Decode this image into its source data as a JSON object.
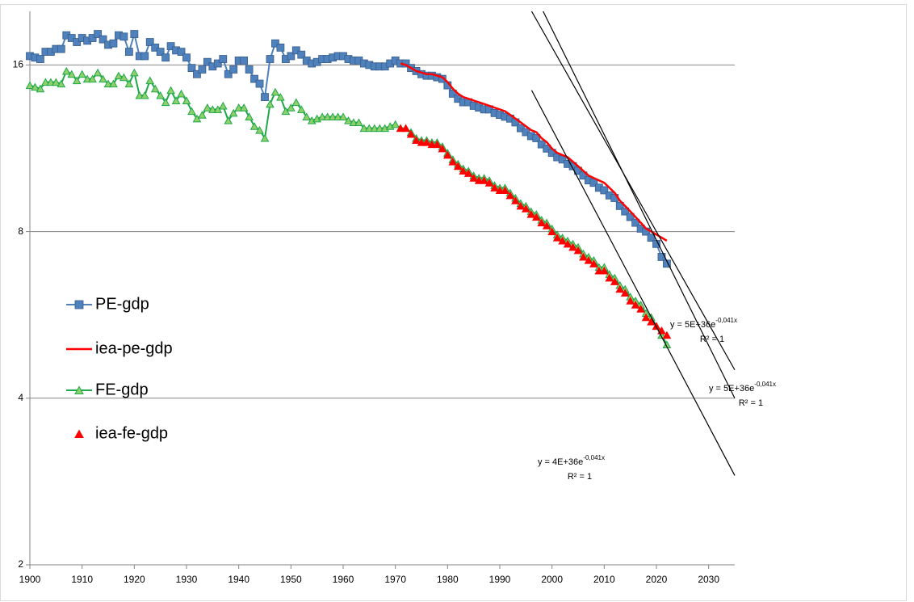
{
  "chart_data": {
    "type": "line",
    "xlim": [
      1900,
      2035
    ],
    "xticks": [
      1900,
      1910,
      1920,
      1930,
      1940,
      1950,
      1960,
      1970,
      1980,
      1990,
      2000,
      2010,
      2020,
      2030
    ],
    "ylim": [
      2,
      20
    ],
    "yticks": [
      2,
      4,
      8,
      16
    ],
    "ylog": true,
    "grid": true,
    "legend": "left",
    "x": [
      1900,
      1901,
      1902,
      1903,
      1904,
      1905,
      1906,
      1907,
      1908,
      1909,
      1910,
      1911,
      1912,
      1913,
      1914,
      1915,
      1916,
      1917,
      1918,
      1919,
      1920,
      1921,
      1922,
      1923,
      1924,
      1925,
      1926,
      1927,
      1928,
      1929,
      1930,
      1931,
      1932,
      1933,
      1934,
      1935,
      1936,
      1937,
      1938,
      1939,
      1940,
      1941,
      1942,
      1943,
      1944,
      1945,
      1946,
      1947,
      1948,
      1949,
      1950,
      1951,
      1952,
      1953,
      1954,
      1955,
      1956,
      1957,
      1958,
      1959,
      1960,
      1961,
      1962,
      1963,
      1964,
      1965,
      1966,
      1967,
      1968,
      1969,
      1970,
      1971,
      1972,
      1973,
      1974,
      1975,
      1976,
      1977,
      1978,
      1979,
      1980,
      1981,
      1982,
      1983,
      1984,
      1985,
      1986,
      1987,
      1988,
      1989,
      1990,
      1991,
      1992,
      1993,
      1994,
      1995,
      1996,
      1997,
      1998,
      1999,
      2000,
      2001,
      2002,
      2003,
      2004,
      2005,
      2006,
      2007,
      2008,
      2009,
      2010,
      2011,
      2012,
      2013,
      2014,
      2015,
      2016,
      2017,
      2018,
      2019,
      2020,
      2021,
      2022
    ],
    "series": [
      {
        "name": "PE-gdp",
        "color": "#4f81bd",
        "marker": "square",
        "line": true,
        "values": [
          16.6,
          16.5,
          16.4,
          16.9,
          16.9,
          17.1,
          17.1,
          18.1,
          17.9,
          17.6,
          17.9,
          17.7,
          17.9,
          18.2,
          17.8,
          17.4,
          17.5,
          18.1,
          18.0,
          16.9,
          18.2,
          16.6,
          16.6,
          17.6,
          17.2,
          16.9,
          16.5,
          17.3,
          17.0,
          16.9,
          16.5,
          15.8,
          15.4,
          15.7,
          16.2,
          15.9,
          16.1,
          16.4,
          15.4,
          15.7,
          16.3,
          16.3,
          15.7,
          15.1,
          14.8,
          14.0,
          16.4,
          17.5,
          17.2,
          16.4,
          16.6,
          17.0,
          16.7,
          16.3,
          16.1,
          16.2,
          16.4,
          16.4,
          16.5,
          16.6,
          16.6,
          16.4,
          16.3,
          16.3,
          16.1,
          16.0,
          15.9,
          15.9,
          15.9,
          16.1,
          16.3,
          16.1,
          16.1,
          15.8,
          15.6,
          15.4,
          15.3,
          15.3,
          15.2,
          15.1,
          14.7,
          14.2,
          13.9,
          13.7,
          13.7,
          13.5,
          13.4,
          13.3,
          13.3,
          13.1,
          13.0,
          12.9,
          12.8,
          12.6,
          12.3,
          12.1,
          11.9,
          11.8,
          11.5,
          11.3,
          11.1,
          10.9,
          10.8,
          10.6,
          10.5,
          10.3,
          10.1,
          9.9,
          9.8,
          9.6,
          9.5,
          9.3,
          9.2,
          8.9,
          8.7,
          8.5,
          8.3,
          8.1,
          8.0,
          7.8,
          7.6,
          7.2,
          7.0
        ]
      },
      {
        "name": "iea-pe-gdp",
        "color": "#ff0000",
        "marker": "none",
        "line": true,
        "x": [
          1971,
          1972,
          1973,
          1974,
          1975,
          1976,
          1977,
          1978,
          1979,
          1980,
          1981,
          1982,
          1983,
          1984,
          1985,
          1986,
          1987,
          1988,
          1989,
          1990,
          1991,
          1992,
          1993,
          1994,
          1995,
          1996,
          1997,
          1998,
          1999,
          2000,
          2001,
          2002,
          2003,
          2004,
          2005,
          2006,
          2007,
          2008,
          2009,
          2010,
          2011,
          2012,
          2013,
          2014,
          2015,
          2016,
          2017,
          2018,
          2019,
          2020,
          2021,
          2022
        ],
        "values": [
          16.1,
          16.0,
          15.8,
          15.6,
          15.5,
          15.4,
          15.4,
          15.3,
          15.2,
          14.9,
          14.5,
          14.2,
          14.0,
          13.9,
          13.8,
          13.7,
          13.6,
          13.5,
          13.4,
          13.3,
          13.2,
          13.0,
          12.8,
          12.6,
          12.4,
          12.2,
          12.1,
          11.8,
          11.6,
          11.3,
          11.1,
          11.0,
          10.9,
          10.7,
          10.5,
          10.3,
          10.1,
          10.0,
          9.9,
          9.8,
          9.6,
          9.4,
          9.1,
          8.9,
          8.7,
          8.5,
          8.3,
          8.1,
          8.0,
          7.9,
          7.8,
          7.7
        ]
      },
      {
        "name": "FE-gdp",
        "color": "#1ea84a",
        "marker": "triangle",
        "line": true,
        "values": [
          14.7,
          14.6,
          14.5,
          14.9,
          14.9,
          14.9,
          14.8,
          15.6,
          15.4,
          15.0,
          15.4,
          15.1,
          15.1,
          15.5,
          15.1,
          14.8,
          14.8,
          15.3,
          15.2,
          14.8,
          15.5,
          14.1,
          14.1,
          15.0,
          14.5,
          14.1,
          13.7,
          14.4,
          13.8,
          14.2,
          13.8,
          13.2,
          12.8,
          13.0,
          13.4,
          13.3,
          13.3,
          13.5,
          12.7,
          13.1,
          13.4,
          13.4,
          12.9,
          12.4,
          12.2,
          11.8,
          13.6,
          14.3,
          14.0,
          13.2,
          13.4,
          13.7,
          13.3,
          12.9,
          12.7,
          12.8,
          12.9,
          12.9,
          12.9,
          12.9,
          12.9,
          12.7,
          12.6,
          12.6,
          12.3,
          12.3,
          12.3,
          12.3,
          12.3,
          12.4,
          12.5,
          12.3,
          12.3,
          12.1,
          11.8,
          11.7,
          11.7,
          11.6,
          11.6,
          11.4,
          11.1,
          10.8,
          10.6,
          10.4,
          10.3,
          10.1,
          10.0,
          10.0,
          9.9,
          9.7,
          9.6,
          9.6,
          9.4,
          9.2,
          9.0,
          8.9,
          8.7,
          8.6,
          8.4,
          8.3,
          8.1,
          7.9,
          7.8,
          7.7,
          7.6,
          7.5,
          7.3,
          7.2,
          7.1,
          6.9,
          6.9,
          6.7,
          6.6,
          6.4,
          6.3,
          6.1,
          6.0,
          5.9,
          5.7,
          5.6,
          5.4,
          5.2,
          5.0
        ]
      },
      {
        "name": "iea-fe-gdp",
        "color": "#ff0000",
        "marker": "triangle",
        "line": false,
        "x": [
          1971,
          1972,
          1973,
          1974,
          1975,
          1976,
          1977,
          1978,
          1979,
          1980,
          1981,
          1982,
          1983,
          1984,
          1985,
          1986,
          1987,
          1988,
          1989,
          1990,
          1991,
          1992,
          1993,
          1994,
          1995,
          1996,
          1997,
          1998,
          1999,
          2000,
          2001,
          2002,
          2003,
          2004,
          2005,
          2006,
          2007,
          2008,
          2009,
          2010,
          2011,
          2012,
          2013,
          2014,
          2015,
          2016,
          2017,
          2018,
          2019,
          2020,
          2021,
          2022
        ],
        "values": [
          12.3,
          12.3,
          12.0,
          11.7,
          11.6,
          11.6,
          11.5,
          11.5,
          11.3,
          11.0,
          10.7,
          10.5,
          10.3,
          10.2,
          10.0,
          9.9,
          9.9,
          9.8,
          9.6,
          9.5,
          9.5,
          9.3,
          9.1,
          8.9,
          8.8,
          8.6,
          8.5,
          8.3,
          8.2,
          8.0,
          7.8,
          7.7,
          7.6,
          7.5,
          7.4,
          7.2,
          7.1,
          7.0,
          6.8,
          6.8,
          6.6,
          6.5,
          6.3,
          6.2,
          6.0,
          5.9,
          5.8,
          5.6,
          5.5,
          5.4,
          5.3,
          5.2
        ]
      }
    ],
    "trendlines": [
      {
        "x": [
          1996.1,
          2035
        ],
        "values": [
          20,
          4.5
        ],
        "equation": "y = 5E+36e",
        "exponent": "-0,041x",
        "r2": "R² = 1"
      },
      {
        "x": [
          1998.3,
          2035
        ],
        "values": [
          20,
          4.0
        ],
        "equation": "y = 5E+36e",
        "exponent": "-0,041x",
        "r2": "R² = 1"
      },
      {
        "x": [
          1996.1,
          2035
        ],
        "values": [
          14.4,
          2.9
        ],
        "equation": "y = 4E+36e",
        "exponent": "-0,041x",
        "r2": "R² = 1"
      }
    ]
  }
}
